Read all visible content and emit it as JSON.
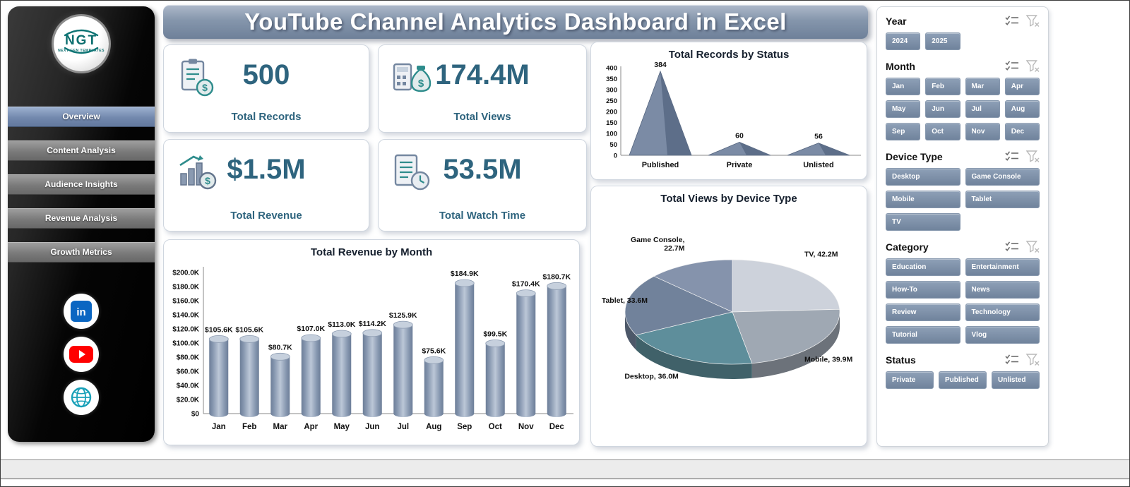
{
  "header": {
    "title": "YouTube Channel Analytics Dashboard in Excel"
  },
  "sidebar": {
    "logo_text": "NGT",
    "logo_subtext": "NEXT GEN TEMPLATES",
    "nav": [
      {
        "label": "Overview",
        "active": true
      },
      {
        "label": "Content Analysis",
        "active": false
      },
      {
        "label": "Audience Insights",
        "active": false
      },
      {
        "label": "Revenue Analysis",
        "active": false
      },
      {
        "label": "Growth Metrics",
        "active": false
      }
    ],
    "social": [
      {
        "name": "linkedin"
      },
      {
        "name": "youtube"
      },
      {
        "name": "website"
      }
    ]
  },
  "kpis": [
    {
      "value": "500",
      "label": "Total Records",
      "icon": "records-clipboard-icon"
    },
    {
      "value": "174.4M",
      "label": "Total Views",
      "icon": "views-moneybag-icon"
    },
    {
      "value": "$1.5M",
      "label": "Total Revenue",
      "icon": "revenue-growth-icon"
    },
    {
      "value": "53.5M",
      "label": "Total Watch Time",
      "icon": "watch-time-clock-icon"
    }
  ],
  "chart_data": [
    {
      "type": "area",
      "title": "Total Records by Status",
      "categories": [
        "Published",
        "Private",
        "Unlisted"
      ],
      "values": [
        384,
        60,
        56
      ],
      "ylim": [
        0,
        400
      ],
      "ytick_step": 50,
      "color": "#7b8ba5"
    },
    {
      "type": "pie",
      "title": "Total Views by Device Type",
      "unit": "M",
      "slices": [
        {
          "label": "TV",
          "value": 42.2,
          "display": [
            "TV, 42.2M"
          ],
          "color": "#cdd2db"
        },
        {
          "label": "Mobile",
          "value": 39.9,
          "display": [
            "Mobile, 39.9M"
          ],
          "color": "#9fa8b3"
        },
        {
          "label": "Desktop",
          "value": 36.0,
          "display": [
            "Desktop, 36.0M"
          ],
          "color": "#5e8e9b"
        },
        {
          "label": "Tablet",
          "value": 33.6,
          "display": [
            "Tablet, 33.6M"
          ],
          "color": "#71829b"
        },
        {
          "label": "Game Console",
          "value": 22.7,
          "display": [
            "Game Console,",
            "22.7M"
          ],
          "color": "#8593ac"
        }
      ]
    },
    {
      "type": "bar",
      "title": "Total Revenue by Month",
      "categories": [
        "Jan",
        "Feb",
        "Mar",
        "Apr",
        "May",
        "Jun",
        "Jul",
        "Aug",
        "Sep",
        "Oct",
        "Nov",
        "Dec"
      ],
      "values": [
        105.6,
        105.6,
        80.7,
        107.0,
        113.0,
        114.2,
        125.9,
        75.6,
        184.9,
        99.5,
        170.4,
        180.7
      ],
      "labels": [
        "$105.6K",
        "$105.6K",
        "$80.7K",
        "$107.0K",
        "$113.0K",
        "$114.2K",
        "$125.9K",
        "$75.6K",
        "$184.9K",
        "$99.5K",
        "$170.4K",
        "$180.7K"
      ],
      "ylim": [
        0,
        200
      ],
      "yticks": [
        "$0",
        "$20.0K",
        "$40.0K",
        "$60.0K",
        "$80.0K",
        "$100.0K",
        "$120.0K",
        "$140.0K",
        "$160.0K",
        "$180.0K",
        "$200.0K"
      ]
    }
  ],
  "slicers": [
    {
      "title": "Year",
      "options": [
        "2024",
        "2025"
      ],
      "cols": 4
    },
    {
      "title": "Month",
      "options": [
        "Jan",
        "Feb",
        "Mar",
        "Apr",
        "May",
        "Jun",
        "Jul",
        "Aug",
        "Sep",
        "Oct",
        "Nov",
        "Dec"
      ],
      "cols": 4
    },
    {
      "title": "Device Type",
      "options": [
        "Desktop",
        "Game Console",
        "Mobile",
        "Tablet",
        "TV"
      ],
      "cols": 2
    },
    {
      "title": "Category",
      "options": [
        "Education",
        "Entertainment",
        "How-To",
        "News",
        "Review",
        "Technology",
        "Tutorial",
        "Vlog"
      ],
      "cols": 2
    },
    {
      "title": "Status",
      "options": [
        "Private",
        "Published",
        "Unlisted"
      ],
      "cols": 3
    }
  ],
  "slicer_icons": [
    "multi-select",
    "clear-filter"
  ],
  "colors": {
    "accent": "#7287a3",
    "kpi_text": "#2e647e",
    "sidebar_active": "#7e94b8",
    "linkedin_blue": "#0a66c2",
    "youtube_red": "#ff0000",
    "logo_teal": "#0d6f6f"
  }
}
